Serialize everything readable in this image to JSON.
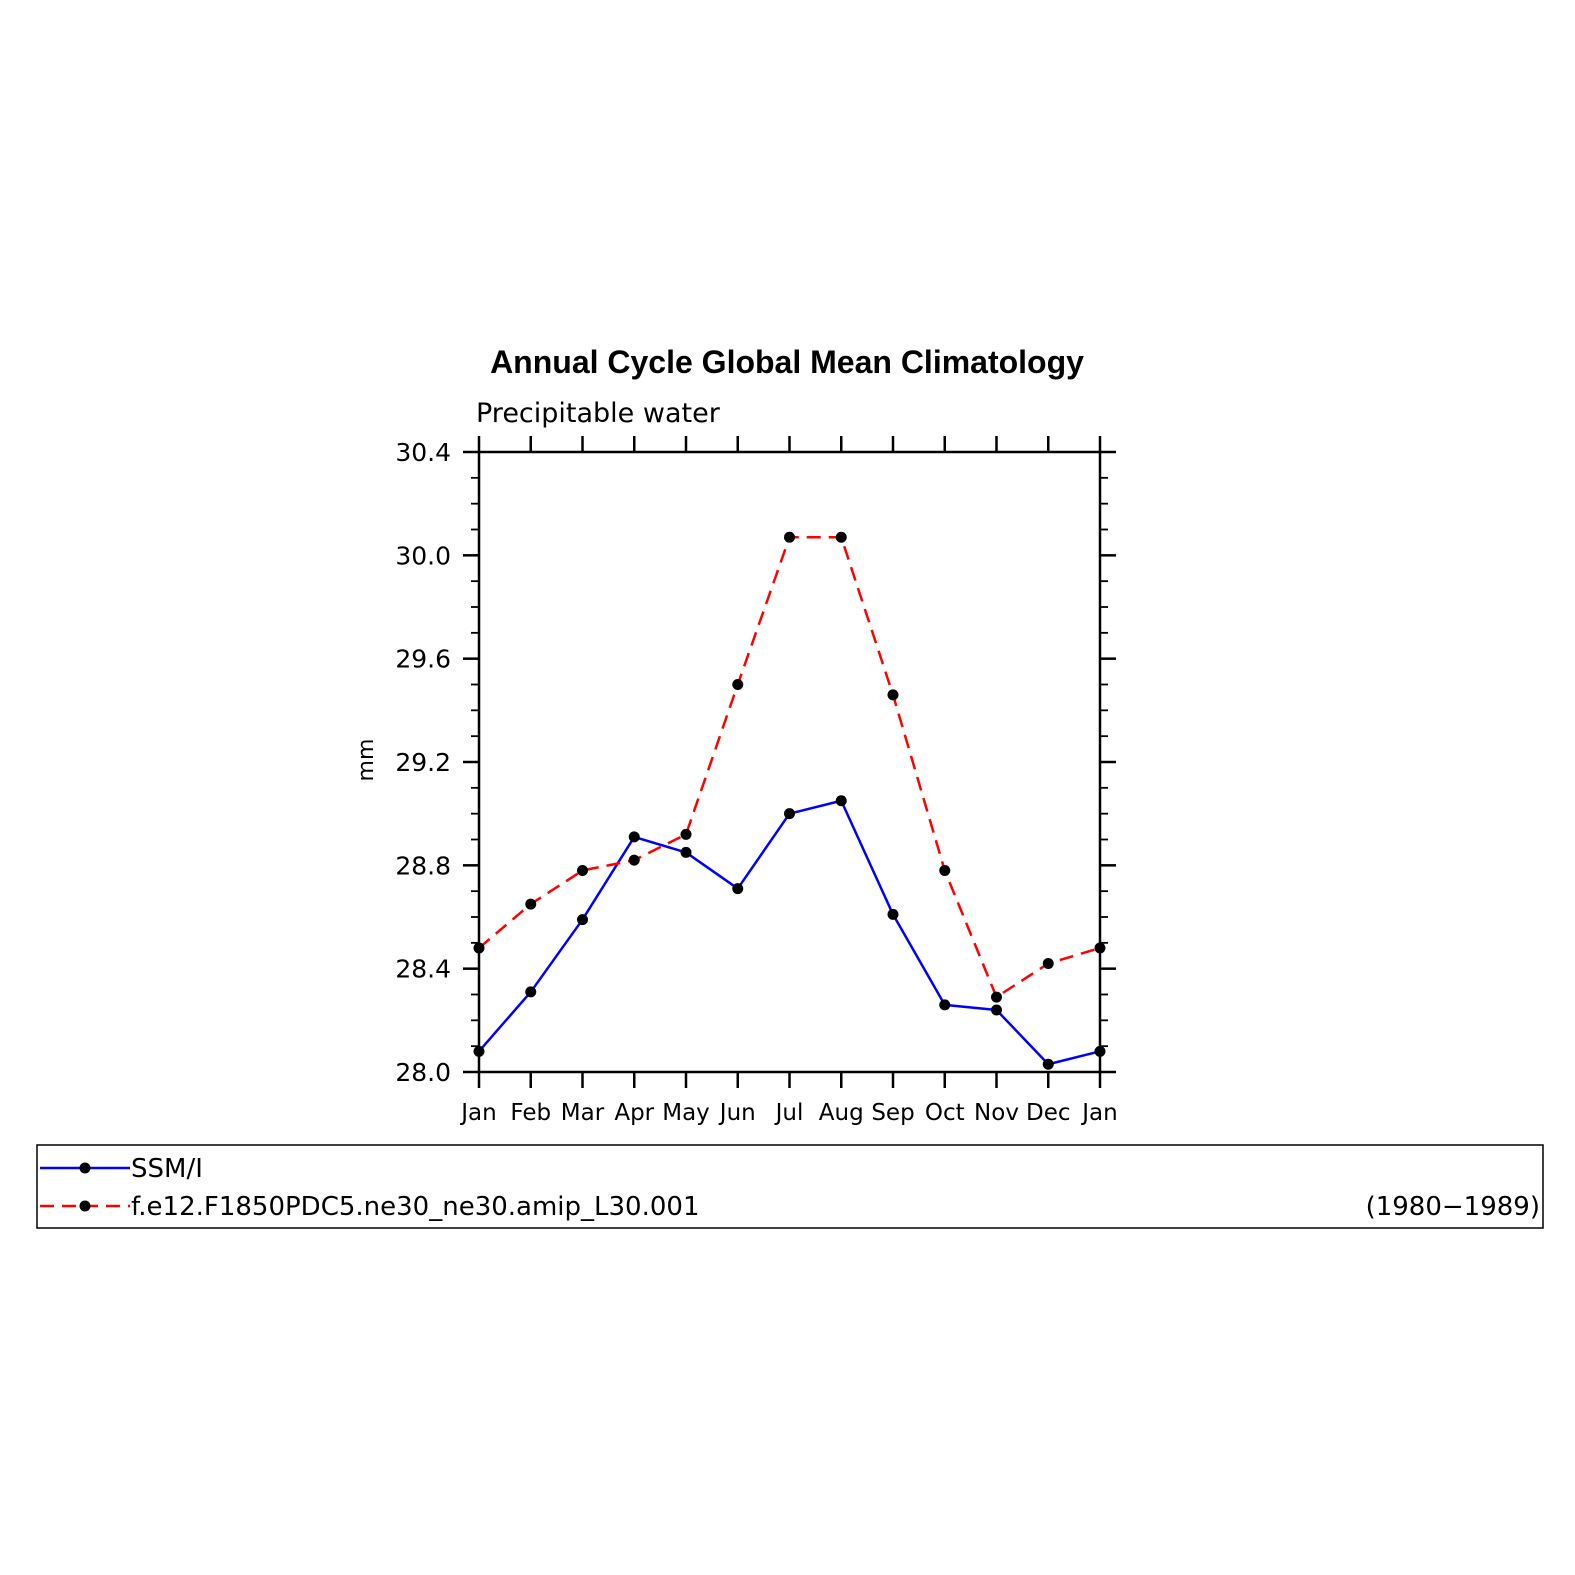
{
  "chart_data": {
    "type": "line",
    "title": "Annual Cycle Global Mean Climatology",
    "subtitle": "Precipitable water",
    "xlabel": "",
    "ylabel": "mm",
    "categories": [
      "Jan",
      "Feb",
      "Mar",
      "Apr",
      "May",
      "Jun",
      "Jul",
      "Aug",
      "Sep",
      "Oct",
      "Nov",
      "Dec",
      "Jan"
    ],
    "ylim": [
      28.0,
      30.4
    ],
    "yticks": [
      "28.0",
      "28.4",
      "28.8",
      "29.2",
      "29.6",
      "30.0",
      "30.4"
    ],
    "grid": false,
    "legend_position": "bottom",
    "series": [
      {
        "name": "SSM/I",
        "color": "#0000ff",
        "dash": "solid",
        "values": [
          28.08,
          28.31,
          28.59,
          28.91,
          28.85,
          28.71,
          29.0,
          29.05,
          28.61,
          28.26,
          28.24,
          28.03,
          28.08
        ]
      },
      {
        "name": "f.e12.F1850PDC5.ne30_ne30.amip_L30.001",
        "color": "#ff0000",
        "dash": "dashed",
        "values": [
          28.48,
          28.65,
          28.78,
          28.82,
          28.92,
          29.5,
          30.07,
          30.07,
          29.46,
          28.78,
          28.29,
          28.42,
          28.48
        ]
      }
    ],
    "legend_note": "(1980−1989)"
  }
}
